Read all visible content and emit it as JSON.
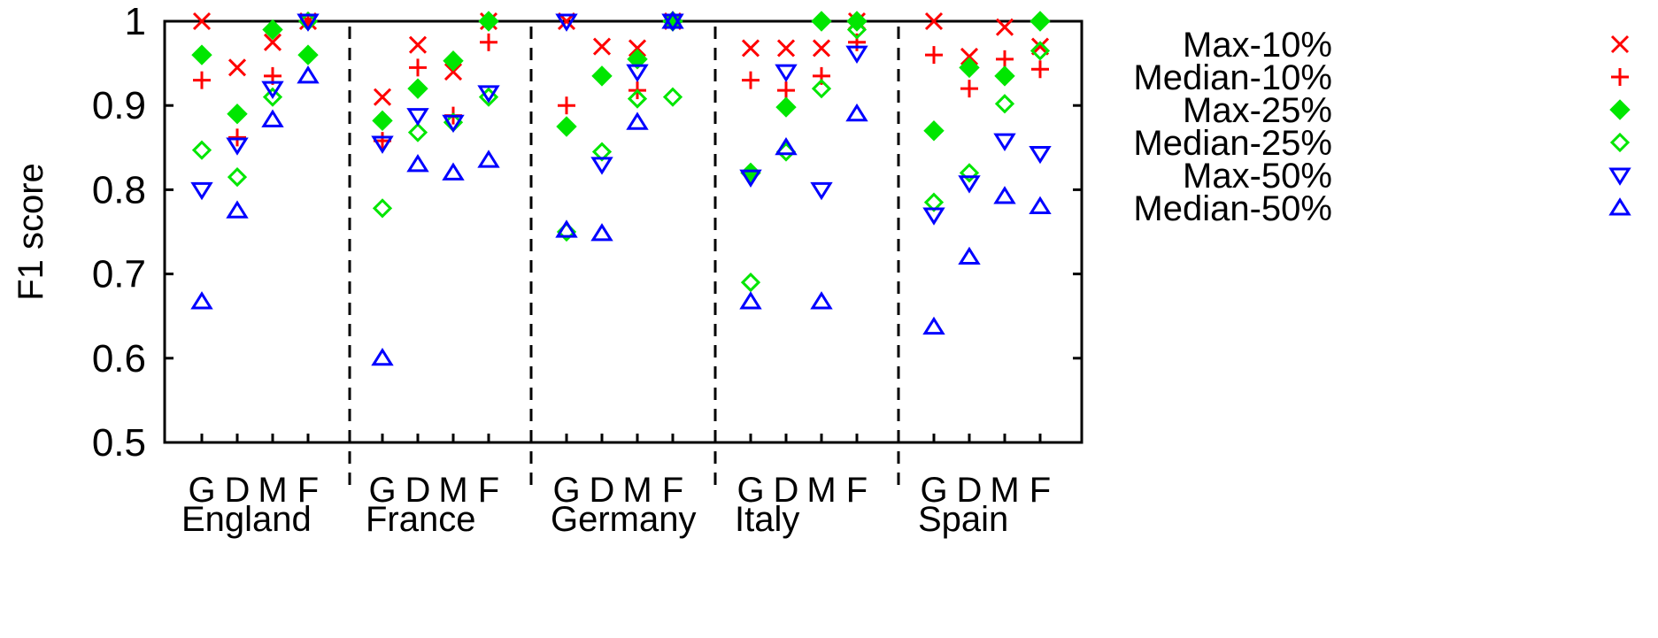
{
  "chart_data": {
    "type": "scatter",
    "ylabel": "F1 score",
    "ylim": [
      0.5,
      1.0
    ],
    "y_ticks": [
      0.5,
      0.6,
      0.7,
      0.8,
      0.9,
      1
    ],
    "y_tick_labels": [
      "0.5",
      "0.6",
      "0.7",
      "0.8",
      "0.9",
      "1"
    ],
    "categories": [
      "G",
      "D",
      "M",
      "F"
    ],
    "groups": [
      "England",
      "France",
      "Germany",
      "Italy",
      "Spain"
    ],
    "legend_position": "right",
    "series": [
      {
        "name": "Max-10%",
        "marker": "x",
        "color": "#ff0000",
        "values": [
          [
            1.0,
            0.945,
            0.975,
            1.0
          ],
          [
            0.91,
            0.972,
            0.94,
            1.0
          ],
          [
            1.0,
            0.97,
            0.968,
            1.0
          ],
          [
            0.968,
            0.968,
            0.968,
            1.0
          ],
          [
            1.0,
            0.958,
            0.993,
            0.97
          ]
        ]
      },
      {
        "name": "Median-10%",
        "marker": "plus",
        "color": "#ff0000",
        "values": [
          [
            0.93,
            0.862,
            0.935,
            1.0
          ],
          [
            0.858,
            0.945,
            0.888,
            0.975
          ],
          [
            0.9,
            0.935,
            0.918,
            1.0
          ],
          [
            0.93,
            0.918,
            0.935,
            0.975
          ],
          [
            0.96,
            0.92,
            0.955,
            0.943
          ]
        ]
      },
      {
        "name": "Max-25%",
        "marker": "diamond-filled",
        "color": "#00e600",
        "values": [
          [
            0.96,
            0.89,
            0.99,
            0.96
          ],
          [
            0.882,
            0.92,
            0.953,
            1.0
          ],
          [
            0.875,
            0.935,
            0.955,
            1.0
          ],
          [
            0.82,
            0.898,
            1.0,
            1.0
          ],
          [
            0.87,
            0.945,
            0.935,
            1.0
          ]
        ]
      },
      {
        "name": "Median-25%",
        "marker": "diamond-open",
        "color": "#00e600",
        "values": [
          [
            0.847,
            0.815,
            0.91,
            1.0
          ],
          [
            0.778,
            0.868,
            0.88,
            0.91
          ],
          [
            0.75,
            0.845,
            0.908,
            0.91
          ],
          [
            0.69,
            0.845,
            0.92,
            0.99
          ],
          [
            0.785,
            0.82,
            0.902,
            0.965
          ]
        ]
      },
      {
        "name": "Max-50%",
        "marker": "triangle-down",
        "color": "#0000ff",
        "values": [
          [
            0.8,
            0.853,
            0.92,
            1.0
          ],
          [
            0.855,
            0.888,
            0.88,
            0.915
          ],
          [
            1.0,
            0.83,
            0.94,
            1.0
          ],
          [
            0.815,
            0.94,
            0.8,
            0.962
          ],
          [
            0.77,
            0.808,
            0.858,
            0.843
          ]
        ]
      },
      {
        "name": "Median-50%",
        "marker": "triangle-up",
        "color": "#0000ff",
        "values": [
          [
            0.667,
            0.775,
            0.883,
            0.935
          ],
          [
            0.6,
            0.83,
            0.82,
            0.835
          ],
          [
            0.752,
            0.748,
            0.88,
            1.0
          ],
          [
            0.667,
            0.85,
            0.667,
            0.89
          ],
          [
            0.637,
            0.72,
            0.792,
            0.78
          ]
        ]
      }
    ]
  }
}
